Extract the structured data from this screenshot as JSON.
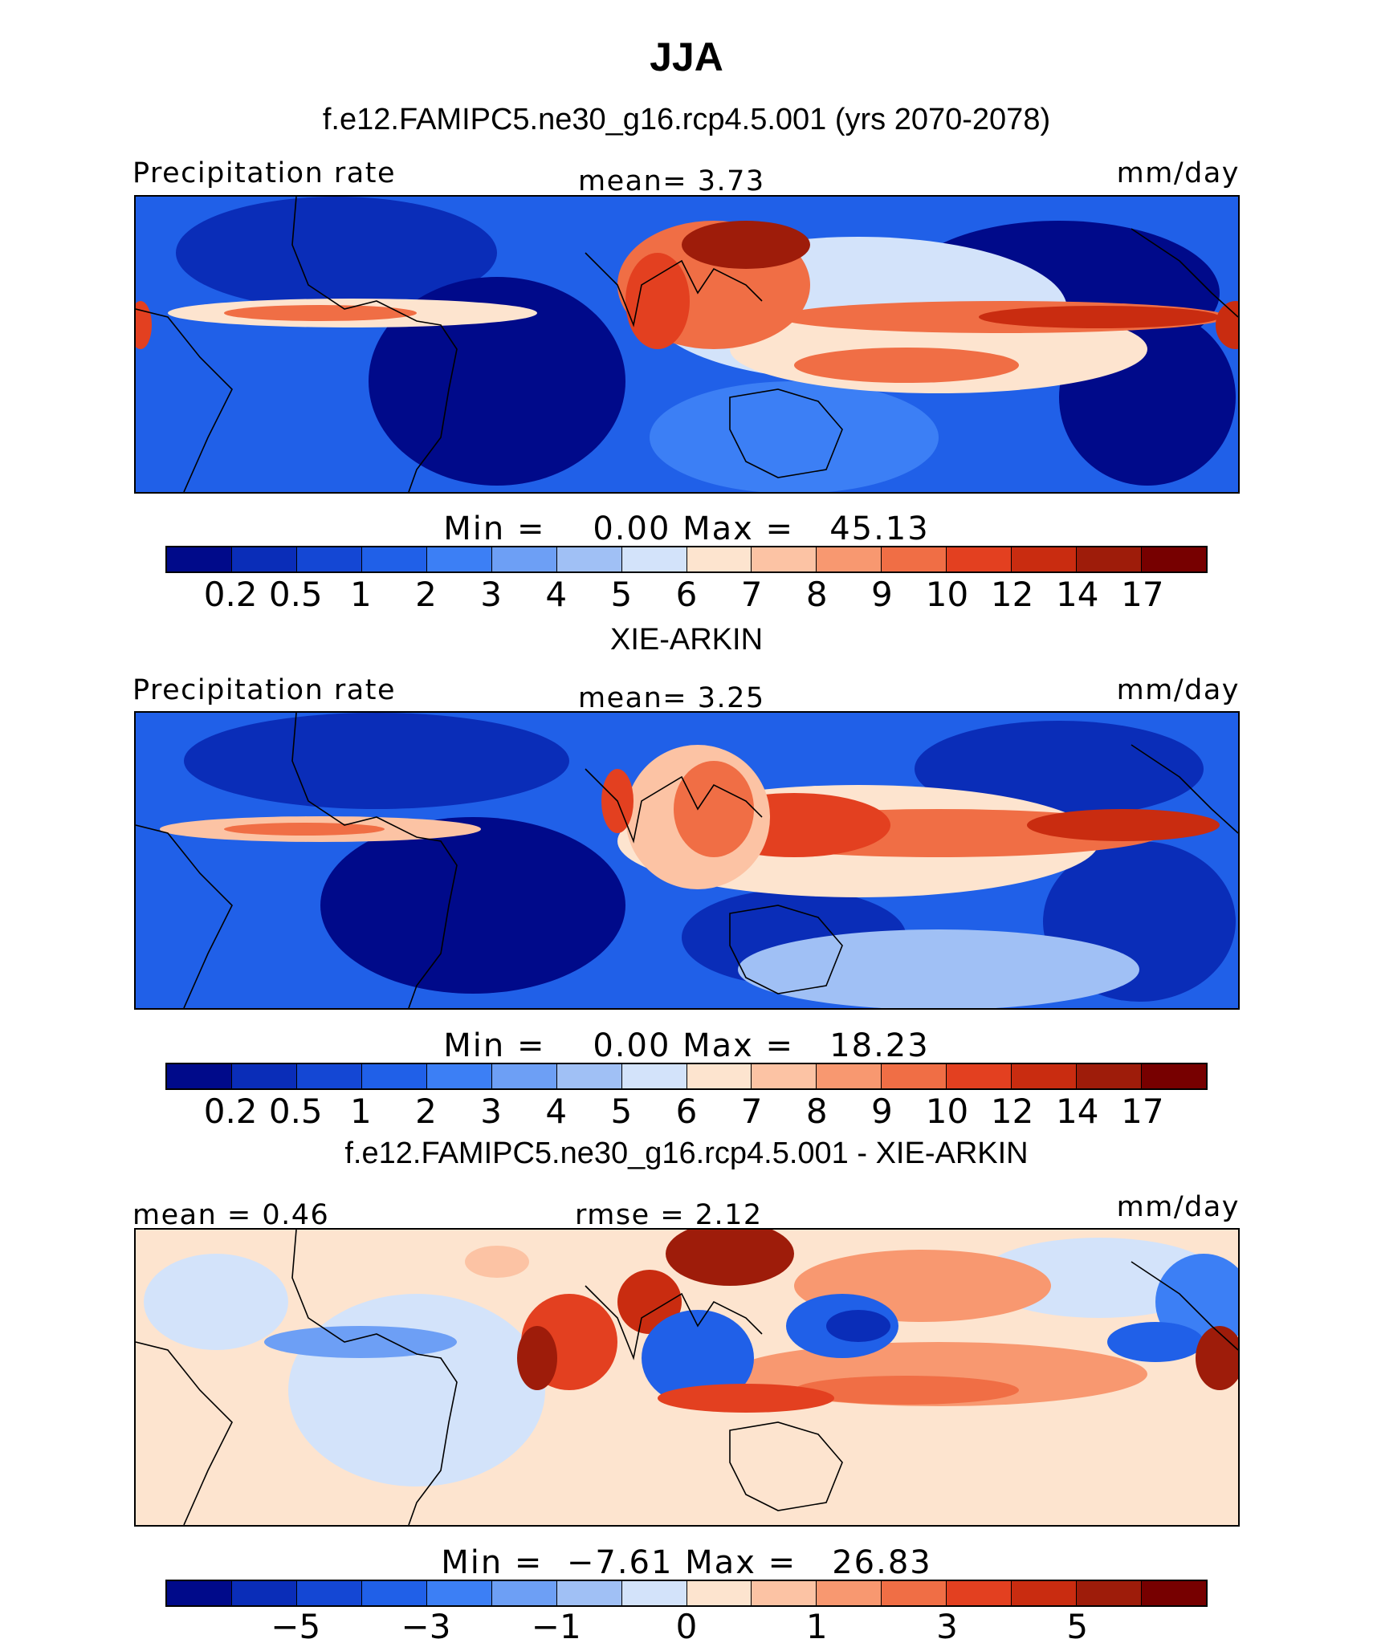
{
  "figure": {
    "title": "JJA",
    "colors": {
      "levels": [
        "#000a8a",
        "#0a2db8",
        "#1447d4",
        "#2060e8",
        "#3c7ff5",
        "#6d9ff5",
        "#a0c0f5",
        "#d3e3fa",
        "#fde4cf",
        "#fcc3a4",
        "#f89870",
        "#f06e45",
        "#e34020",
        "#c92c10",
        "#9e1c0a",
        "#770000"
      ]
    }
  },
  "panels": [
    {
      "id": "model",
      "subtitle": "f.e12.FAMIPC5.ne30_g16.rcp4.5.001 (yrs 2070-2078)",
      "left_label": "Precipitation rate",
      "center_label": "mean=   3.73",
      "right_label": "mm/day",
      "min_max": "Min =    0.00 Max =   45.13",
      "tick_labels": [
        "0.2",
        "0.5",
        "1",
        "2",
        "3",
        "4",
        "5",
        "6",
        "7",
        "8",
        "9",
        "10",
        "12",
        "14",
        "17"
      ],
      "map_alt": "model-precip"
    },
    {
      "id": "obs",
      "subtitle": "XIE-ARKIN",
      "left_label": "Precipitation rate",
      "center_label": "mean=   3.25",
      "right_label": "mm/day",
      "min_max": "Min =    0.00 Max =   18.23",
      "tick_labels": [
        "0.2",
        "0.5",
        "1",
        "2",
        "3",
        "4",
        "5",
        "6",
        "7",
        "8",
        "9",
        "10",
        "12",
        "14",
        "17"
      ],
      "map_alt": "obs-precip"
    },
    {
      "id": "diff",
      "subtitle": "f.e12.FAMIPC5.ne30_g16.rcp4.5.001 - XIE-ARKIN",
      "left_label": "mean =   0.46",
      "center_label": "rmse =   2.12",
      "right_label": "mm/day",
      "min_max": "Min =  −7.61 Max =   26.83",
      "tick_labels": [
        "−5",
        "−3",
        "−1",
        "0",
        "1",
        "3",
        "5"
      ],
      "map_alt": "diff-precip"
    }
  ]
}
